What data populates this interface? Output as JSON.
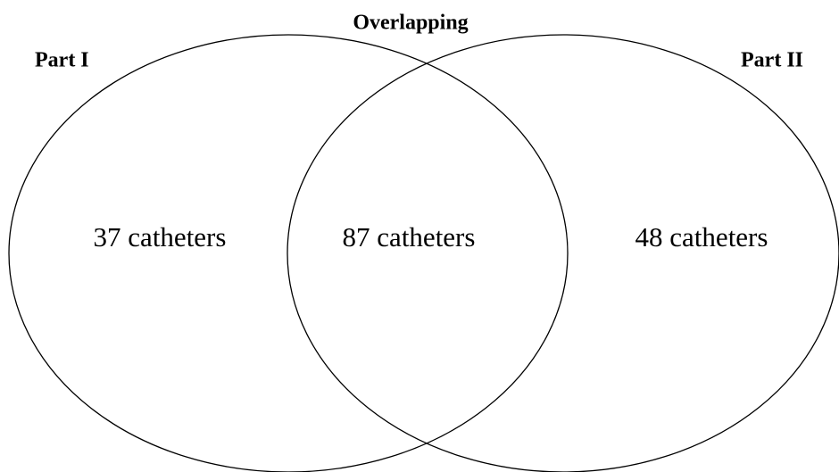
{
  "title": "Overlapping",
  "sets": [
    {
      "label": "Part I"
    },
    {
      "label": "Part II"
    }
  ],
  "regions": [
    {
      "label": "37 catheters"
    },
    {
      "label": "87 catheters"
    },
    {
      "label": "48 catheters"
    }
  ]
}
